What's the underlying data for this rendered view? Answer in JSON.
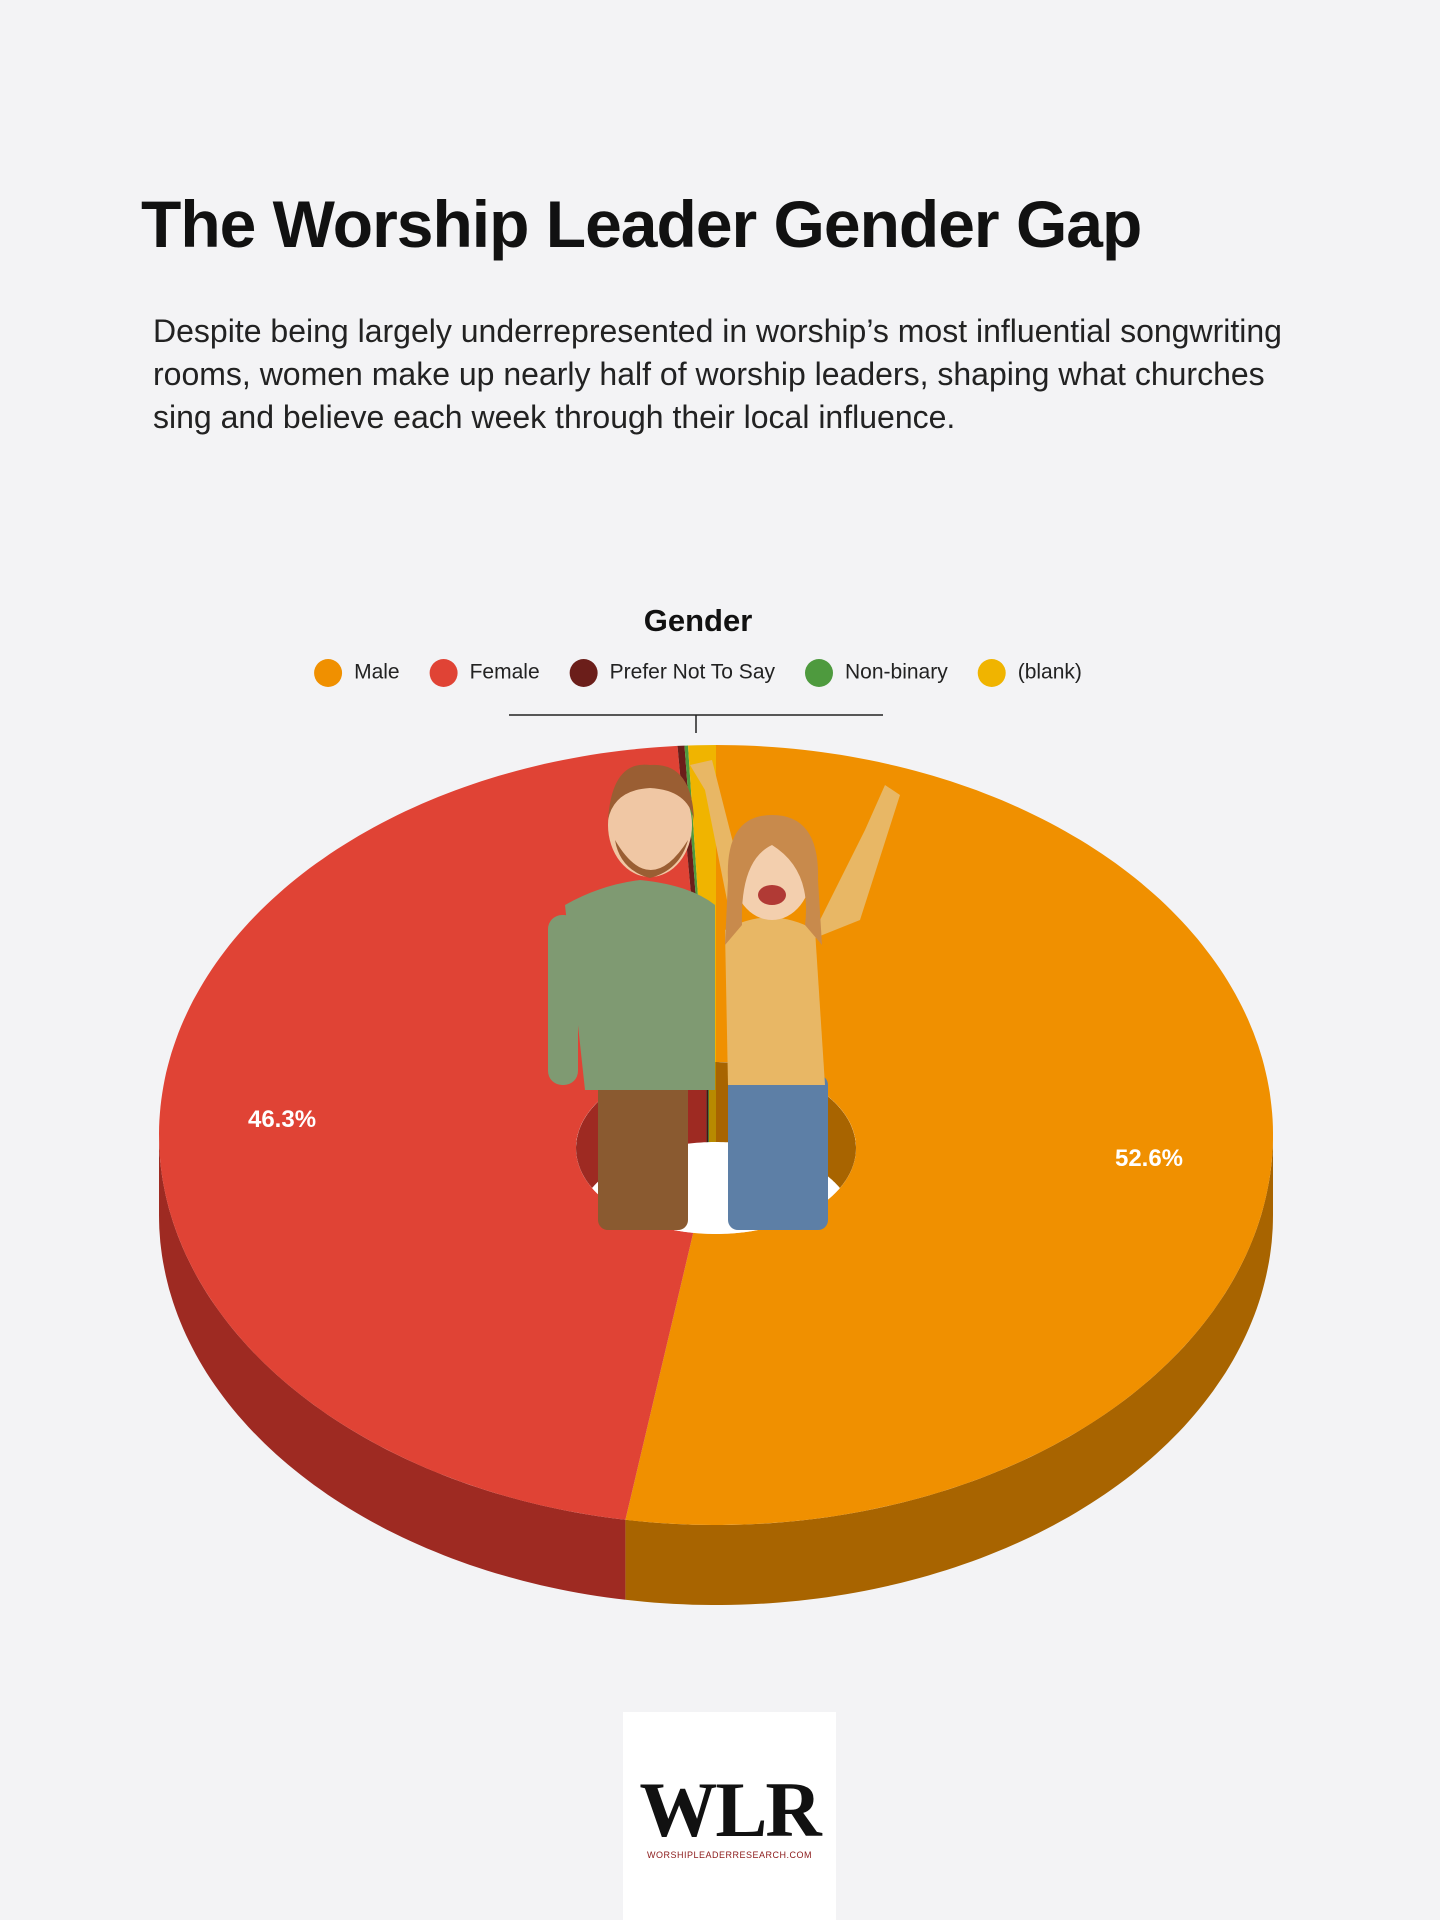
{
  "headline": "The Worship Leader Gender Gap",
  "description": "Despite being largely underrepresented in worship’s most influential songwriting rooms, women make up nearly half of worship leaders, shaping what churches sing and believe each week through their local influence.",
  "chart_data": {
    "type": "pie",
    "title": "Gender",
    "categories": [
      "Male",
      "Female",
      "Prefer Not To Say",
      "Non-binary",
      "(blank)"
    ],
    "values": [
      52.6,
      46.3,
      0.2,
      0.1,
      0.8
    ],
    "value_labels": [
      "52.6%",
      "46.3%",
      null,
      null,
      null
    ],
    "colors": [
      "#f09000",
      "#e04335",
      "#6b1e1a",
      "#4e9a3e",
      "#f0b400"
    ],
    "side_colors": [
      "#a86400",
      "#9e2a22",
      "#4a1411",
      "#356b2a",
      "#b88a00"
    ],
    "donut": true,
    "legend": "top"
  },
  "logo": {
    "mark": "WLR",
    "site": "WORSHIPLEADERRESEARCH.COM"
  }
}
